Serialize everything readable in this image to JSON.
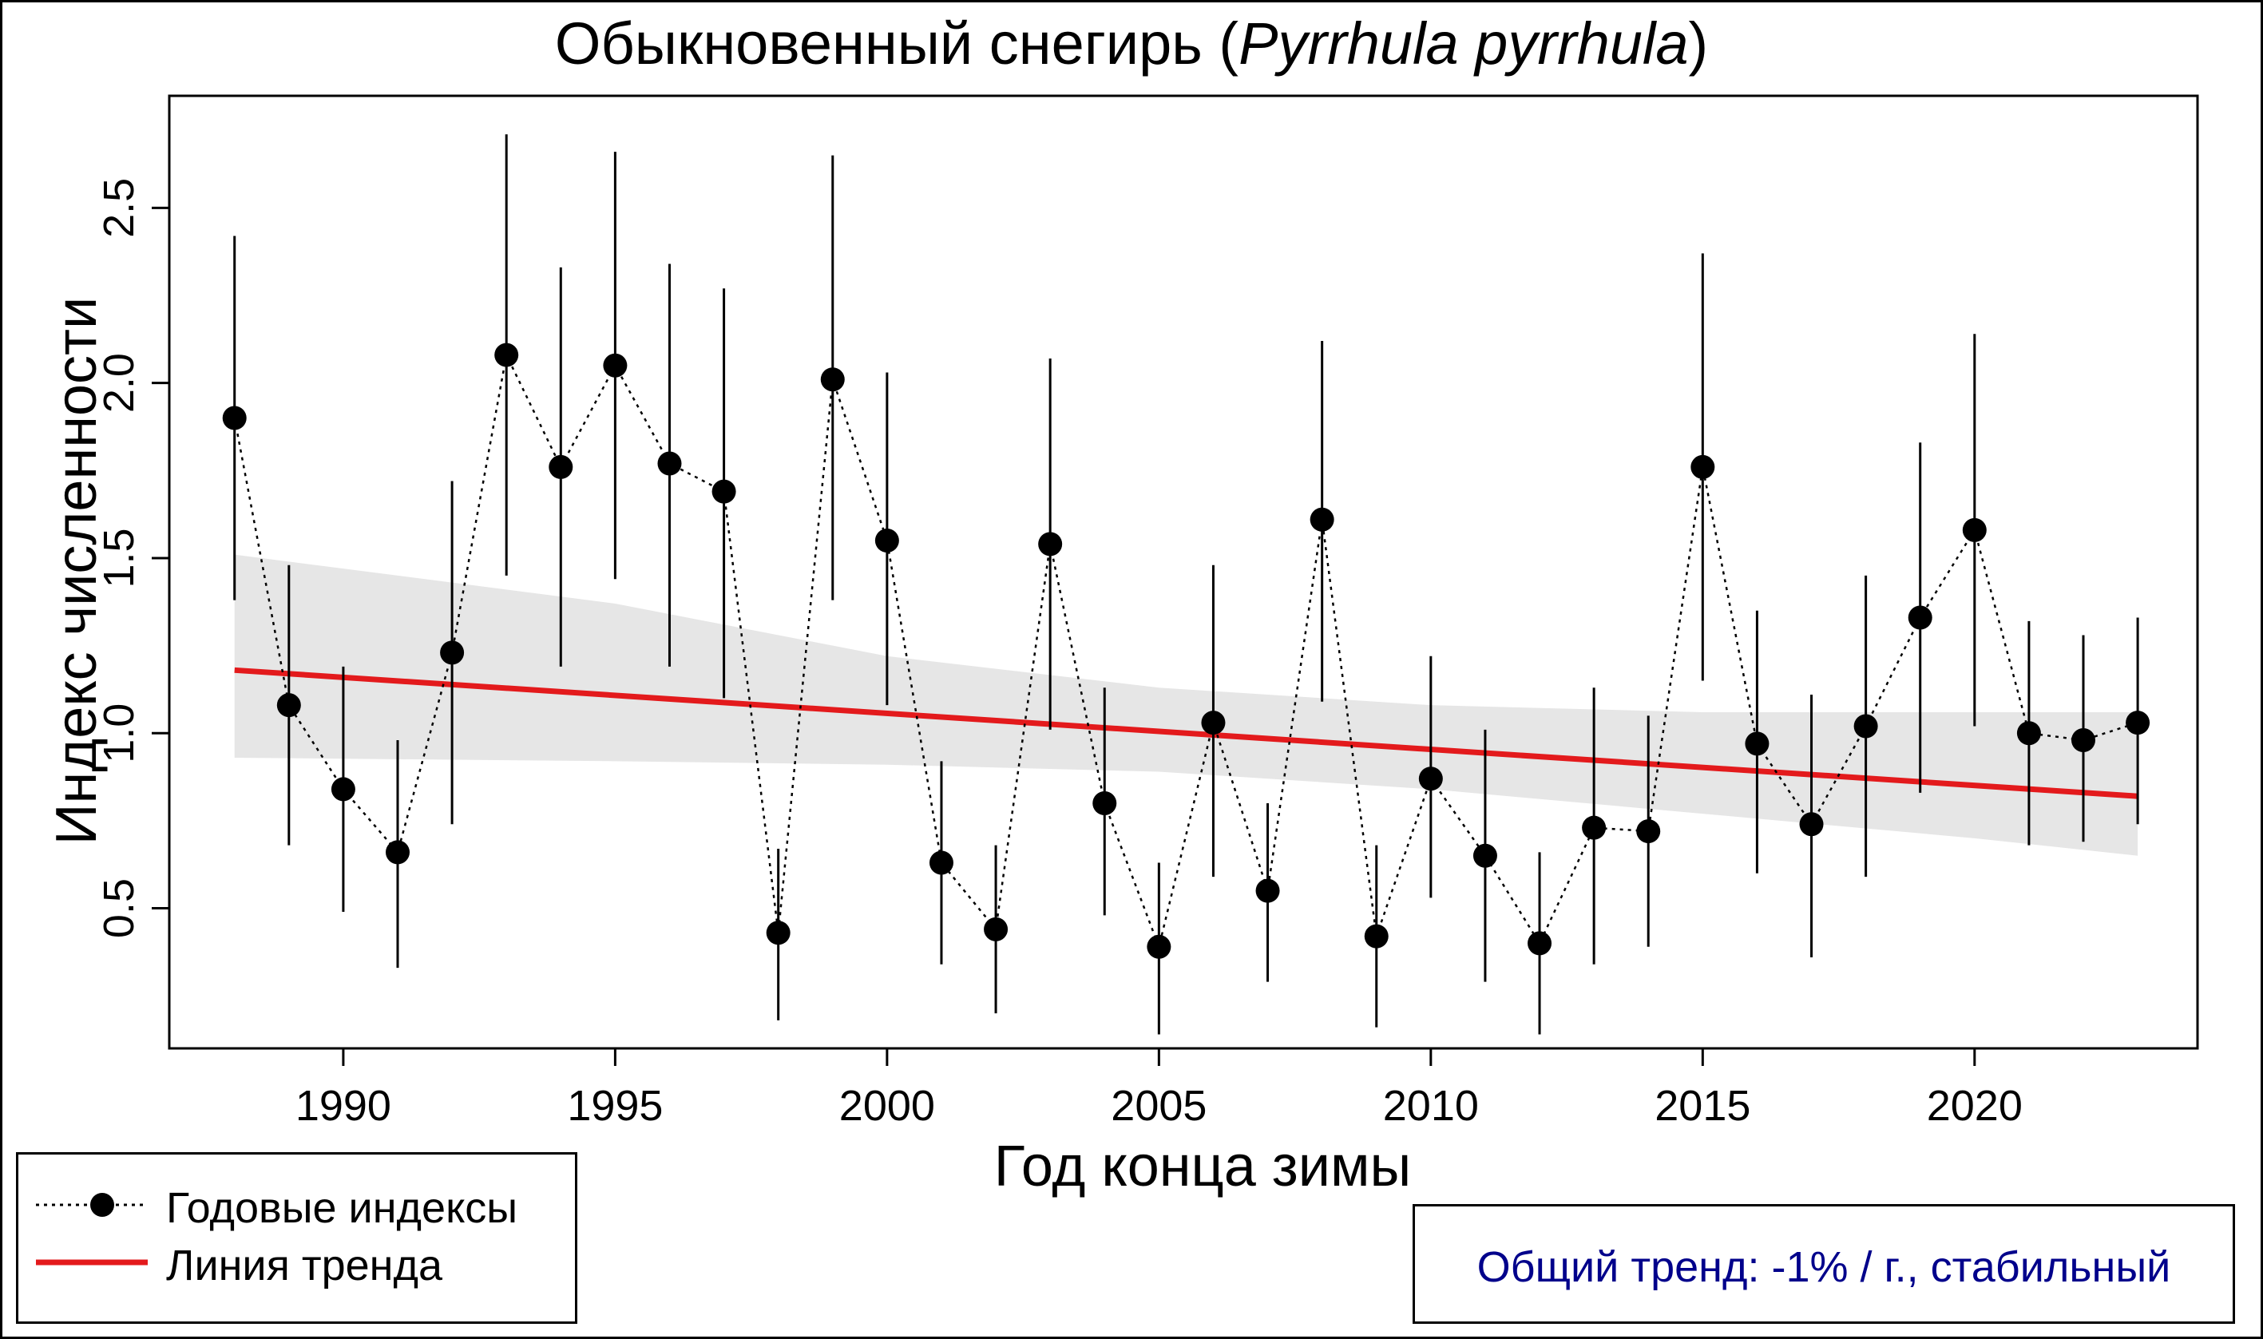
{
  "title": {
    "main": "Обыкновенный снегирь (",
    "latin": "Pyrrhula pyrrhula",
    "close": ")"
  },
  "chart_data": {
    "type": "scatter",
    "title": "Обыкновенный снегирь (Pyrrhula pyrrhula)",
    "xlabel": "Год конца зимы",
    "ylabel": "Индекс численности",
    "xlim": [
      1986.8,
      2024.1
    ],
    "ylim": [
      0.1,
      2.82
    ],
    "x_ticks": [
      1990,
      1995,
      2000,
      2005,
      2010,
      2015,
      2020
    ],
    "y_ticks": [
      0.5,
      1.0,
      1.5,
      2.0,
      2.5
    ],
    "y_tick_labels": [
      "0.5",
      "1.0",
      "1.5",
      "2.0",
      "2.5"
    ],
    "series": [
      {
        "name": "Годовые индексы",
        "style": "points-dotted-line-with-error-bars",
        "color": "#000000",
        "x": [
          1988,
          1989,
          1990,
          1991,
          1992,
          1993,
          1994,
          1995,
          1996,
          1997,
          1998,
          1999,
          2000,
          2001,
          2002,
          2003,
          2004,
          2005,
          2006,
          2007,
          2008,
          2009,
          2010,
          2011,
          2012,
          2013,
          2014,
          2015,
          2016,
          2017,
          2018,
          2019,
          2020,
          2021,
          2022,
          2023
        ],
        "values": [
          1.9,
          1.08,
          0.84,
          0.66,
          1.23,
          2.08,
          1.76,
          2.05,
          1.77,
          1.69,
          0.43,
          2.01,
          1.55,
          0.63,
          0.44,
          1.54,
          0.8,
          0.39,
          1.03,
          0.55,
          1.61,
          0.42,
          0.87,
          0.65,
          0.4,
          0.73,
          0.72,
          1.76,
          0.97,
          0.74,
          1.02,
          1.33,
          1.58,
          1.0,
          0.98,
          1.03
        ],
        "lower": [
          1.38,
          0.68,
          0.49,
          0.33,
          0.74,
          1.45,
          1.19,
          1.44,
          1.19,
          1.1,
          0.18,
          1.38,
          1.08,
          0.34,
          0.2,
          1.01,
          0.48,
          0.14,
          0.59,
          0.29,
          1.09,
          0.16,
          0.53,
          0.29,
          0.14,
          0.34,
          0.39,
          1.15,
          0.6,
          0.36,
          0.59,
          0.83,
          1.02,
          0.68,
          0.69,
          0.74
        ],
        "upper": [
          2.42,
          1.48,
          1.19,
          0.98,
          1.72,
          2.71,
          2.33,
          2.66,
          2.34,
          2.27,
          0.67,
          2.65,
          2.03,
          0.92,
          0.68,
          2.07,
          1.13,
          0.63,
          1.48,
          0.8,
          2.12,
          0.68,
          1.22,
          1.01,
          0.66,
          1.13,
          1.05,
          2.37,
          1.35,
          1.11,
          1.45,
          1.83,
          2.14,
          1.32,
          1.28,
          1.33
        ]
      },
      {
        "name": "Линия тренда",
        "style": "line",
        "color": "#e31a1c",
        "x": [
          1988,
          2023
        ],
        "values": [
          1.18,
          0.82
        ]
      }
    ],
    "confidence_band": {
      "color": "#e6e6e6",
      "x": [
        1988,
        1995,
        2000,
        2005,
        2010,
        2015,
        2020,
        2023
      ],
      "lower": [
        0.93,
        0.92,
        0.91,
        0.89,
        0.84,
        0.77,
        0.7,
        0.65
      ],
      "upper": [
        1.51,
        1.37,
        1.22,
        1.13,
        1.08,
        1.06,
        1.06,
        1.06
      ]
    },
    "legend": {
      "position": "bottom-left",
      "entries": [
        "Годовые индексы",
        "Линия тренда"
      ]
    },
    "annotation": "Общий тренд: -1% / г., стабильный"
  },
  "legend": {
    "points_label": "Годовые индексы",
    "trend_label": "Линия тренда"
  },
  "trend_note": "Общий тренд: -1% / г., стабильный",
  "colors": {
    "trend_line": "#e31a1c",
    "band": "#e6e6e6",
    "note_text": "#00008b",
    "points": "#000000"
  }
}
